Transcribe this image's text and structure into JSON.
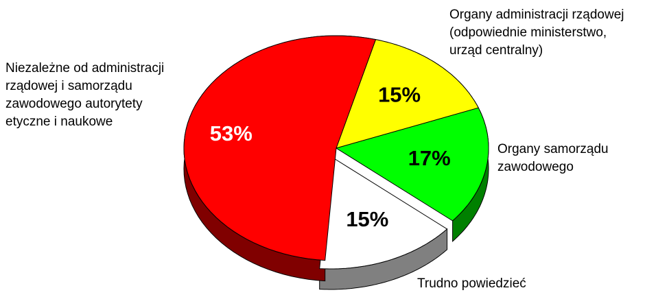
{
  "chart_data": {
    "type": "pie",
    "categories": [
      [
        "Organy administracji rządowej",
        "(odpowiednie ministerstwo,",
        "urząd centralny)"
      ],
      [
        "Organy samorządu",
        "zawodowego"
      ],
      [
        "Trudno powiedzieć"
      ],
      [
        "Niezależne od administracji",
        "rządowej i samorządu",
        "zawodowego autorytety",
        "etyczne i naukowe"
      ]
    ],
    "values": [
      15,
      17,
      15,
      53
    ],
    "value_labels": [
      "15%",
      "17%",
      "15%",
      "53%"
    ],
    "colors": [
      "#ffff00",
      "#00ff00",
      "#ffffff",
      "#ff0000"
    ],
    "side_colors": [
      "#808000",
      "#008000",
      "#808080",
      "#800000"
    ],
    "label_colors": [
      "#000000",
      "#000000",
      "#000000",
      "#ffffff"
    ]
  }
}
